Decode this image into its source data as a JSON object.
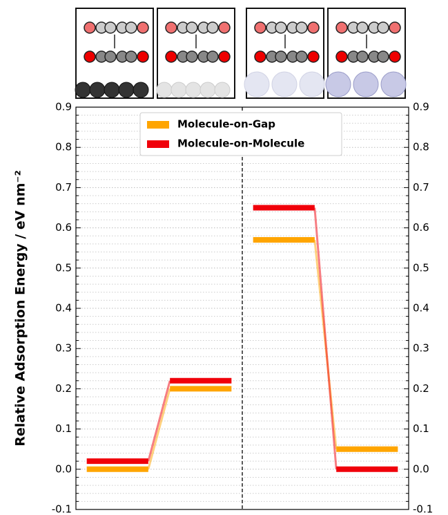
{
  "chart_data": {
    "type": "energy-level",
    "ylabel": "Relative Adsorption Energy / eV nm⁻²",
    "categories": [
      null,
      null,
      null,
      null
    ],
    "series": [
      {
        "name": "Molecule-on-Gap",
        "color": "#ffa500",
        "values": [
          0,
          0.2,
          0.57,
          0.05
        ]
      },
      {
        "name": "Molecule-on-Molecule",
        "color": "#f0000a",
        "values": [
          0.02,
          0.22,
          0.65,
          0
        ]
      }
    ],
    "ylim": [
      -0.1,
      0.9
    ],
    "yticks": [
      -0.1,
      {
        "value": 0,
        "label": "0.0"
      },
      0.1,
      0.2,
      0.3,
      0.4,
      0.5,
      0.6,
      0.7,
      0.8,
      0.9
    ],
    "grid": true,
    "legend": "upper center"
  }
}
